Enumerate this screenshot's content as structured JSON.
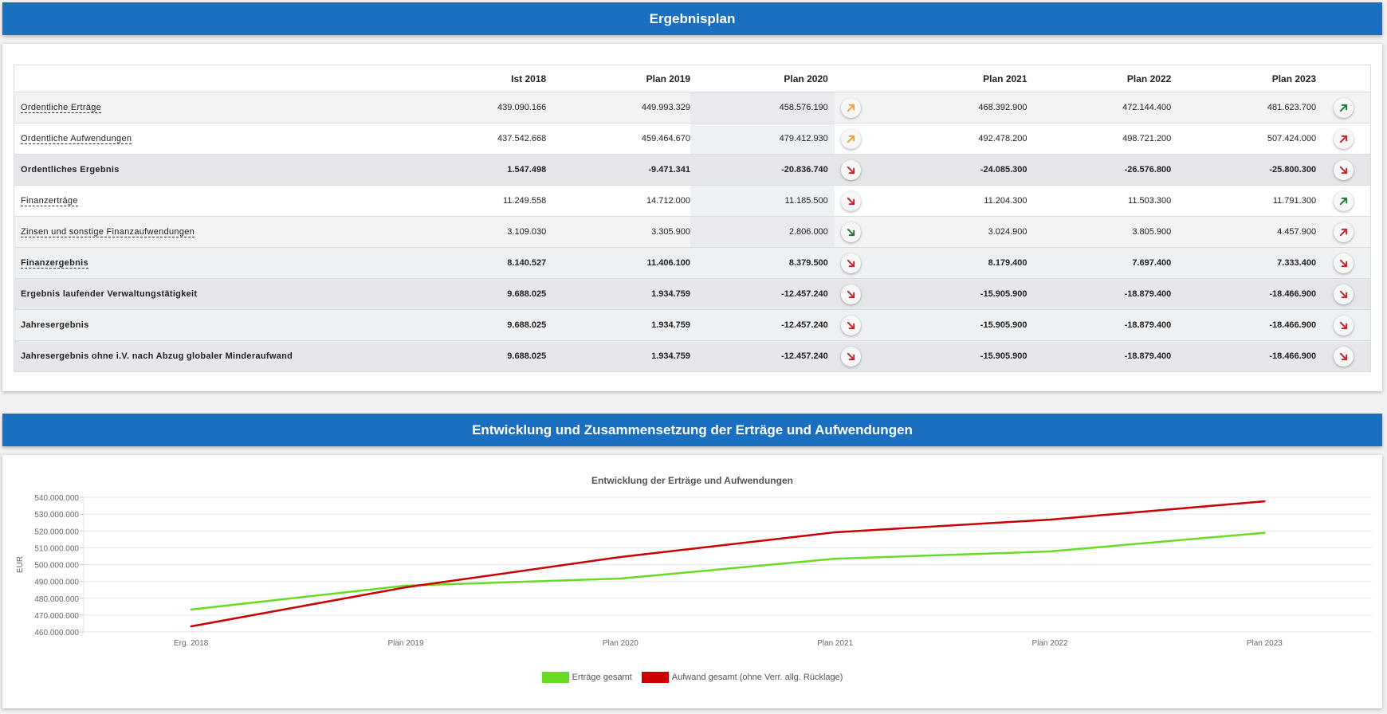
{
  "section1": {
    "title": "Ergebnisplan",
    "columns": [
      "",
      "Ist 2018",
      "Plan 2019",
      "Plan 2020",
      "Plan 2021",
      "Plan 2022",
      "Plan 2023"
    ],
    "rows": [
      {
        "label": "Ordentliche Erträge",
        "link": true,
        "style": "r-light",
        "values": [
          "439.090.166",
          "449.993.329",
          "458.576.190",
          "468.392.900",
          "472.144.400",
          "481.623.700"
        ],
        "trend2020": {
          "icon": "arrow-up-right-icon",
          "color": "#e8a33a"
        },
        "trend2023": {
          "icon": "arrow-up-right-icon",
          "color": "#1e7a36"
        }
      },
      {
        "label": "Ordentliche Aufwendungen",
        "link": true,
        "style": "r-white",
        "values": [
          "437.542.668",
          "459.464.670",
          "479.412.930",
          "492.478.200",
          "498.721.200",
          "507.424.000"
        ],
        "trend2020": {
          "icon": "arrow-up-right-icon",
          "color": "#e8a33a"
        },
        "trend2023": {
          "icon": "arrow-up-right-icon",
          "color": "#c0272d"
        }
      },
      {
        "label": "Ordentliches Ergebnis",
        "link": false,
        "style": "r-sum",
        "values": [
          "1.547.498",
          "-9.471.341",
          "-20.836.740",
          "-24.085.300",
          "-26.576.800",
          "-25.800.300"
        ],
        "trend2020": {
          "icon": "arrow-down-right-icon",
          "color": "#c0272d"
        },
        "trend2023": {
          "icon": "arrow-down-right-icon",
          "color": "#c0272d"
        }
      },
      {
        "label": "Finanzerträge",
        "link": true,
        "style": "r-white",
        "values": [
          "11.249.558",
          "14.712.000",
          "11.185.500",
          "11.204.300",
          "11.503.300",
          "11.791.300"
        ],
        "trend2020": {
          "icon": "arrow-down-right-icon",
          "color": "#c0272d"
        },
        "trend2023": {
          "icon": "arrow-up-right-icon",
          "color": "#1e7a36"
        }
      },
      {
        "label": "Zinsen und sonstige Finanzaufwendungen",
        "link": true,
        "style": "r-light",
        "values": [
          "3.109.030",
          "3.305.900",
          "2.806.000",
          "3.024.900",
          "3.805.900",
          "4.457.900"
        ],
        "trend2020": {
          "icon": "arrow-down-right-icon",
          "color": "#1e7a36"
        },
        "trend2023": {
          "icon": "arrow-up-right-icon",
          "color": "#c0272d"
        }
      },
      {
        "label": "Finanzergebnis",
        "link": true,
        "style": "r-sum2",
        "values": [
          "8.140.527",
          "11.406.100",
          "8.379.500",
          "8.179.400",
          "7.697.400",
          "7.333.400"
        ],
        "trend2020": {
          "icon": "arrow-down-right-icon",
          "color": "#c0272d"
        },
        "trend2023": {
          "icon": "arrow-down-right-icon",
          "color": "#c0272d"
        }
      },
      {
        "label": "Ergebnis laufender Verwaltungstätigkeit",
        "link": false,
        "style": "r-sum",
        "values": [
          "9.688.025",
          "1.934.759",
          "-12.457.240",
          "-15.905.900",
          "-18.879.400",
          "-18.466.900"
        ],
        "trend2020": {
          "icon": "arrow-down-right-icon",
          "color": "#c0272d"
        },
        "trend2023": {
          "icon": "arrow-down-right-icon",
          "color": "#c0272d"
        }
      },
      {
        "label": "Jahresergebnis",
        "link": false,
        "style": "r-sum2",
        "values": [
          "9.688.025",
          "1.934.759",
          "-12.457.240",
          "-15.905.900",
          "-18.879.400",
          "-18.466.900"
        ],
        "trend2020": {
          "icon": "arrow-down-right-icon",
          "color": "#c0272d"
        },
        "trend2023": {
          "icon": "arrow-down-right-icon",
          "color": "#c0272d"
        }
      },
      {
        "label": "Jahresergebnis ohne i.V. nach Abzug globaler Minderaufwand",
        "link": false,
        "style": "r-sum",
        "values": [
          "9.688.025",
          "1.934.759",
          "-12.457.240",
          "-15.905.900",
          "-18.879.400",
          "-18.466.900"
        ],
        "trend2020": {
          "icon": "arrow-down-right-icon",
          "color": "#c0272d"
        },
        "trend2023": {
          "icon": "arrow-down-right-icon",
          "color": "#c0272d"
        }
      }
    ]
  },
  "section2": {
    "title": "Entwicklung und Zusammensetzung der Erträge und Aufwendungen"
  },
  "chart_data": {
    "type": "line",
    "title": "Entwicklung der Erträge und Aufwendungen",
    "xlabel": "",
    "ylabel": "EUR",
    "categories": [
      "Erg. 2018",
      "Plan 2019",
      "Plan 2020",
      "Plan 2021",
      "Plan 2022",
      "Plan 2023"
    ],
    "ylim": [
      460000000,
      540000000
    ],
    "yticks": [
      460000000,
      470000000,
      480000000,
      490000000,
      500000000,
      510000000,
      520000000,
      530000000,
      540000000
    ],
    "ytick_labels": [
      "460.000.000",
      "470.000.000",
      "480.000.000",
      "490.000.000",
      "500.000.000",
      "510.000.000",
      "520.000.000",
      "530.000.000",
      "540.000.000"
    ],
    "grid": true,
    "legend_position": "bottom",
    "series": [
      {
        "name": "Erträge gesamt",
        "color": "#66dd22",
        "values": [
          473300000,
          487500000,
          491700000,
          503500000,
          507800000,
          518900000
        ]
      },
      {
        "name": "Aufwand gesamt (ohne Verr. allg. Rücklage)",
        "color": "#cc0000",
        "values": [
          463300000,
          486500000,
          504500000,
          519200000,
          526700000,
          537600000
        ]
      }
    ]
  }
}
